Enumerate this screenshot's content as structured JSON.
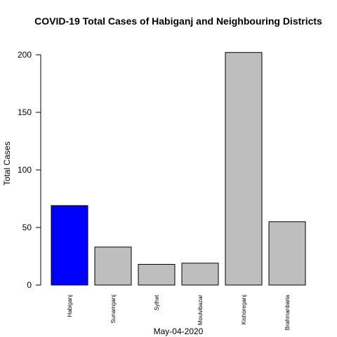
{
  "chart_data": {
    "type": "bar",
    "title": "COVID-19 Total Cases of Habiganj and Neighbouring Districts",
    "xlabel": "May-04-2020",
    "ylabel": "Total Cases",
    "categories": [
      "Habiganj",
      "Sunamganj",
      "Sylhet",
      "Moulvibazar",
      "Kishoreganj",
      "Brahmanbaria"
    ],
    "values": [
      69,
      33,
      18,
      19,
      202,
      55
    ],
    "colors": [
      "#0000ff",
      "#bebebe",
      "#bebebe",
      "#bebebe",
      "#bebebe",
      "#bebebe"
    ],
    "ylim": [
      0,
      200
    ],
    "yticks": [
      0,
      50,
      100,
      150,
      200
    ],
    "grid": false,
    "legend": "none"
  }
}
